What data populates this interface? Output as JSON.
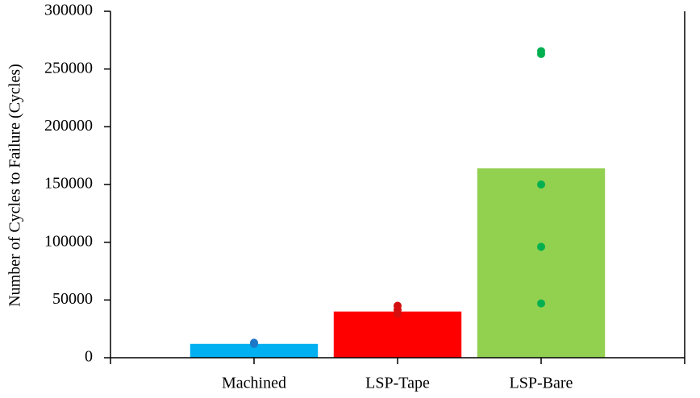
{
  "chart_data": {
    "type": "bar",
    "ylabel": "Number of Cycles to Failure (Cycles)",
    "categories": [
      "Machined",
      "LSP-Tape",
      "LSP-Bare"
    ],
    "values": [
      12000,
      40000,
      164000
    ],
    "colors": [
      "#00b0f0",
      "#ff0000",
      "#92d050"
    ],
    "points": [
      [
        12000,
        13000
      ],
      [
        45000,
        41500,
        38000
      ],
      [
        265500,
        263000,
        150000,
        96000,
        47000
      ]
    ],
    "point_colors": [
      "#1f77c8",
      "#d40f0f",
      "#00b050"
    ],
    "ylim": [
      0,
      300000
    ],
    "yticks": [
      0,
      50000,
      100000,
      150000,
      200000,
      250000,
      300000
    ]
  }
}
